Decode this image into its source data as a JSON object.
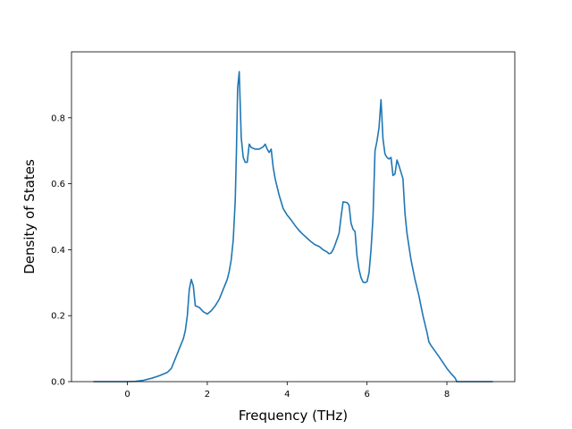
{
  "chart_data": {
    "type": "line",
    "title": "",
    "xlabel": "Frequency (THz)",
    "ylabel": "Density of States",
    "xlim": [
      -1.4,
      9.7
    ],
    "ylim": [
      0.0,
      1.0
    ],
    "xticks": [
      0,
      2,
      4,
      6,
      8
    ],
    "yticks": [
      0.0,
      0.2,
      0.4,
      0.6,
      0.8
    ],
    "xtick_labels": [
      "0",
      "2",
      "4",
      "6",
      "8"
    ],
    "ytick_labels": [
      "0.0",
      "0.2",
      "0.4",
      "0.6",
      "0.8"
    ],
    "grid": false,
    "series": [
      {
        "color": "#1f77b4",
        "x": [
          -0.85,
          -0.5,
          0.0,
          0.2,
          0.4,
          0.6,
          0.8,
          1.0,
          1.1,
          1.2,
          1.3,
          1.4,
          1.45,
          1.5,
          1.55,
          1.6,
          1.65,
          1.7,
          1.8,
          1.9,
          2.0,
          2.1,
          2.2,
          2.3,
          2.4,
          2.5,
          2.55,
          2.6,
          2.65,
          2.7,
          2.73,
          2.76,
          2.8,
          2.85,
          2.9,
          2.95,
          3.0,
          3.05,
          3.1,
          3.2,
          3.3,
          3.4,
          3.45,
          3.5,
          3.55,
          3.6,
          3.65,
          3.7,
          3.8,
          3.9,
          4.0,
          4.1,
          4.2,
          4.3,
          4.4,
          4.5,
          4.6,
          4.7,
          4.8,
          4.9,
          5.0,
          5.05,
          5.1,
          5.15,
          5.2,
          5.3,
          5.35,
          5.4,
          5.5,
          5.55,
          5.6,
          5.65,
          5.7,
          5.75,
          5.8,
          5.85,
          5.9,
          5.95,
          6.0,
          6.05,
          6.1,
          6.15,
          6.2,
          6.25,
          6.3,
          6.35,
          6.4,
          6.45,
          6.5,
          6.55,
          6.6,
          6.65,
          6.7,
          6.75,
          6.8,
          6.85,
          6.9,
          6.95,
          7.0,
          7.05,
          7.1,
          7.2,
          7.3,
          7.4,
          7.5,
          7.55,
          7.6,
          7.7,
          7.8,
          7.9,
          8.0,
          8.1,
          8.2,
          8.25,
          8.3,
          8.35,
          8.4,
          8.6,
          8.8,
          9.0,
          9.15
        ],
        "y": [
          0.0,
          0.0,
          0.0,
          0.001,
          0.004,
          0.01,
          0.018,
          0.028,
          0.04,
          0.07,
          0.1,
          0.13,
          0.155,
          0.2,
          0.28,
          0.31,
          0.29,
          0.23,
          0.225,
          0.212,
          0.205,
          0.215,
          0.23,
          0.25,
          0.28,
          0.31,
          0.335,
          0.37,
          0.43,
          0.55,
          0.7,
          0.89,
          0.94,
          0.74,
          0.68,
          0.665,
          0.665,
          0.72,
          0.71,
          0.705,
          0.705,
          0.712,
          0.72,
          0.705,
          0.695,
          0.705,
          0.65,
          0.615,
          0.565,
          0.525,
          0.505,
          0.49,
          0.473,
          0.458,
          0.446,
          0.435,
          0.424,
          0.415,
          0.41,
          0.4,
          0.393,
          0.388,
          0.39,
          0.4,
          0.415,
          0.45,
          0.5,
          0.545,
          0.543,
          0.535,
          0.48,
          0.462,
          0.455,
          0.38,
          0.34,
          0.315,
          0.302,
          0.3,
          0.303,
          0.33,
          0.4,
          0.5,
          0.7,
          0.73,
          0.77,
          0.855,
          0.735,
          0.69,
          0.68,
          0.675,
          0.68,
          0.625,
          0.63,
          0.672,
          0.655,
          0.635,
          0.615,
          0.51,
          0.45,
          0.41,
          0.37,
          0.31,
          0.26,
          0.2,
          0.15,
          0.12,
          0.11,
          0.093,
          0.076,
          0.058,
          0.04,
          0.025,
          0.012,
          0.0,
          0.0,
          0.0,
          0.0,
          0.0,
          0.0,
          0.0,
          0.0
        ]
      }
    ]
  }
}
